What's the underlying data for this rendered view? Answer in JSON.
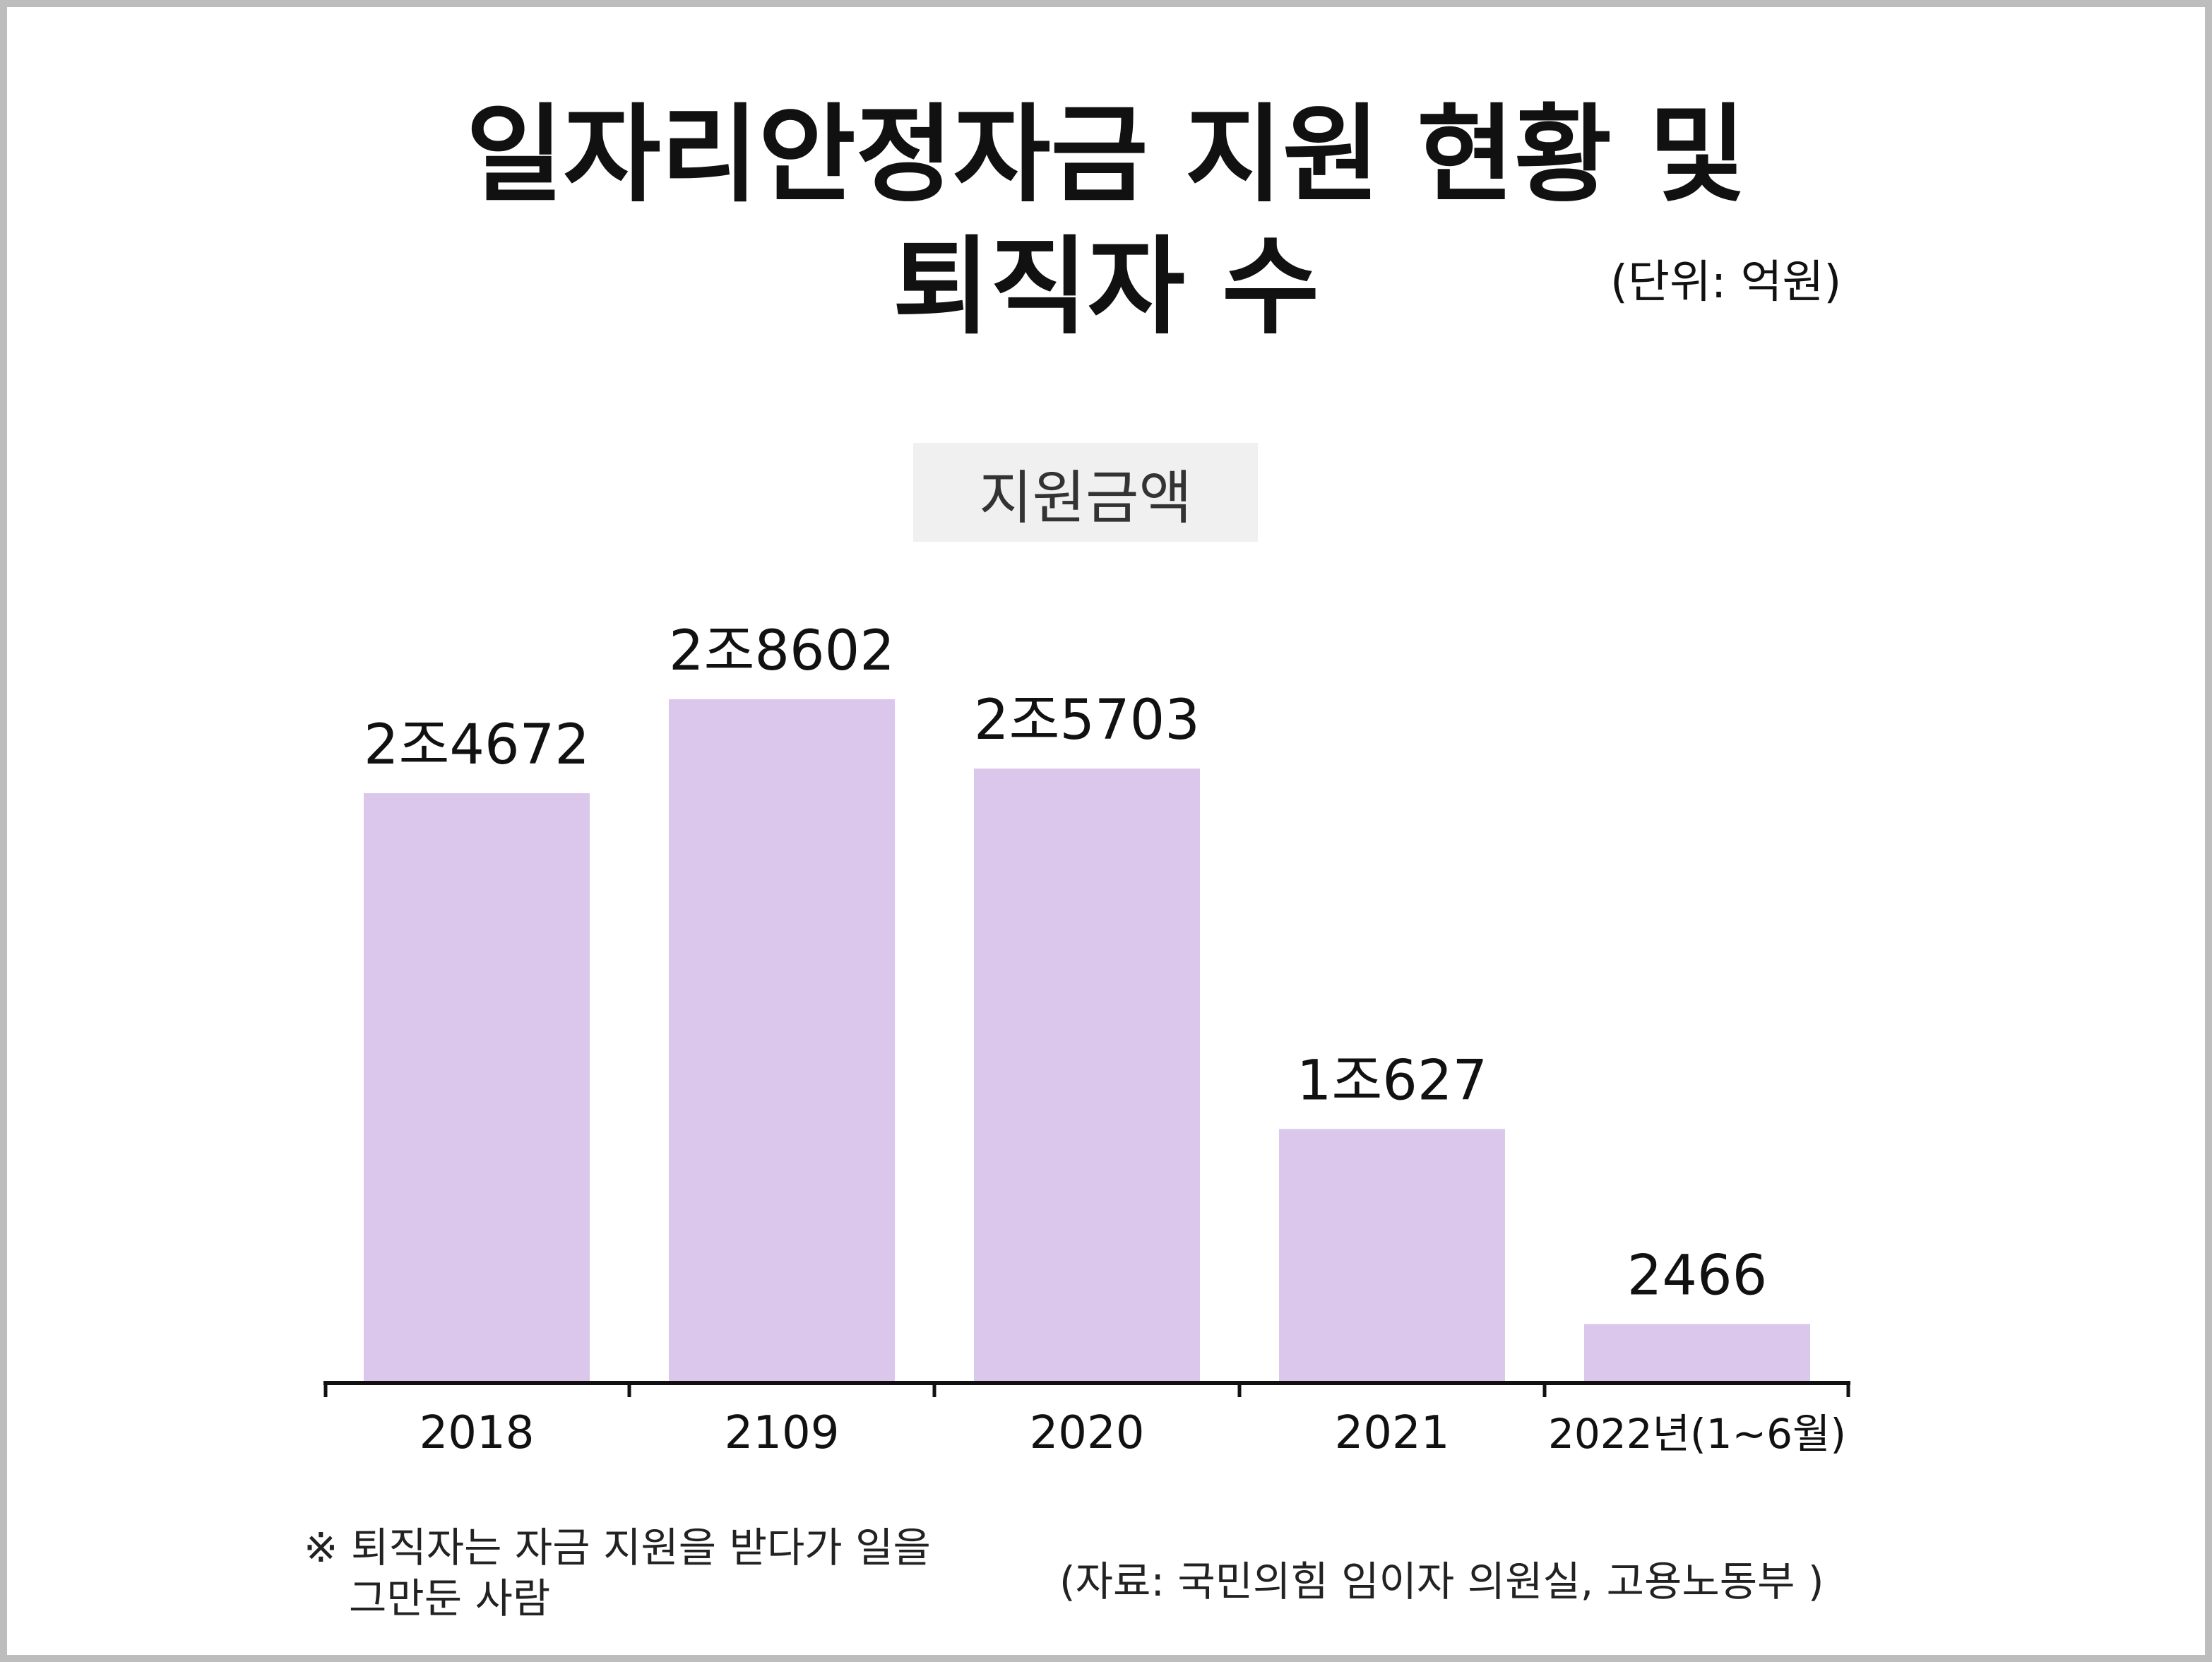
{
  "title": {
    "line1": "일자리안정자금 지원 현황 및",
    "line2": "퇴직자 수"
  },
  "unit_label": "(단위: 억원)",
  "legend_label": "지원금액",
  "note": {
    "line1": "※ 퇴직자는 자금 지원을 받다가 일을",
    "line2": "그만둔 사람"
  },
  "source": "(자료: 국민의힘 임이자 의원실, 고용노동부 )",
  "colors": {
    "bar": "#dbc6ec",
    "axis": "#111111",
    "legend_bg": "#f0f0f0",
    "frame": "#bdbdbd"
  },
  "chart_data": {
    "type": "bar",
    "title": "일자리안정자금 지원 현황 및 퇴직자 수",
    "unit": "억원",
    "categories": [
      "2018",
      "2109",
      "2020",
      "2021",
      "2022년(1~6월)"
    ],
    "values": [
      24672,
      28602,
      25703,
      10627,
      2466
    ],
    "data_labels": [
      "2조4672",
      "2조8602",
      "2조5703",
      "1조627",
      "2466"
    ],
    "series": [
      {
        "name": "지원금액",
        "values": [
          24672,
          28602,
          25703,
          10627,
          2466
        ]
      }
    ],
    "ylim": [
      0,
      33000
    ],
    "grid": false,
    "legend": "top-center"
  }
}
